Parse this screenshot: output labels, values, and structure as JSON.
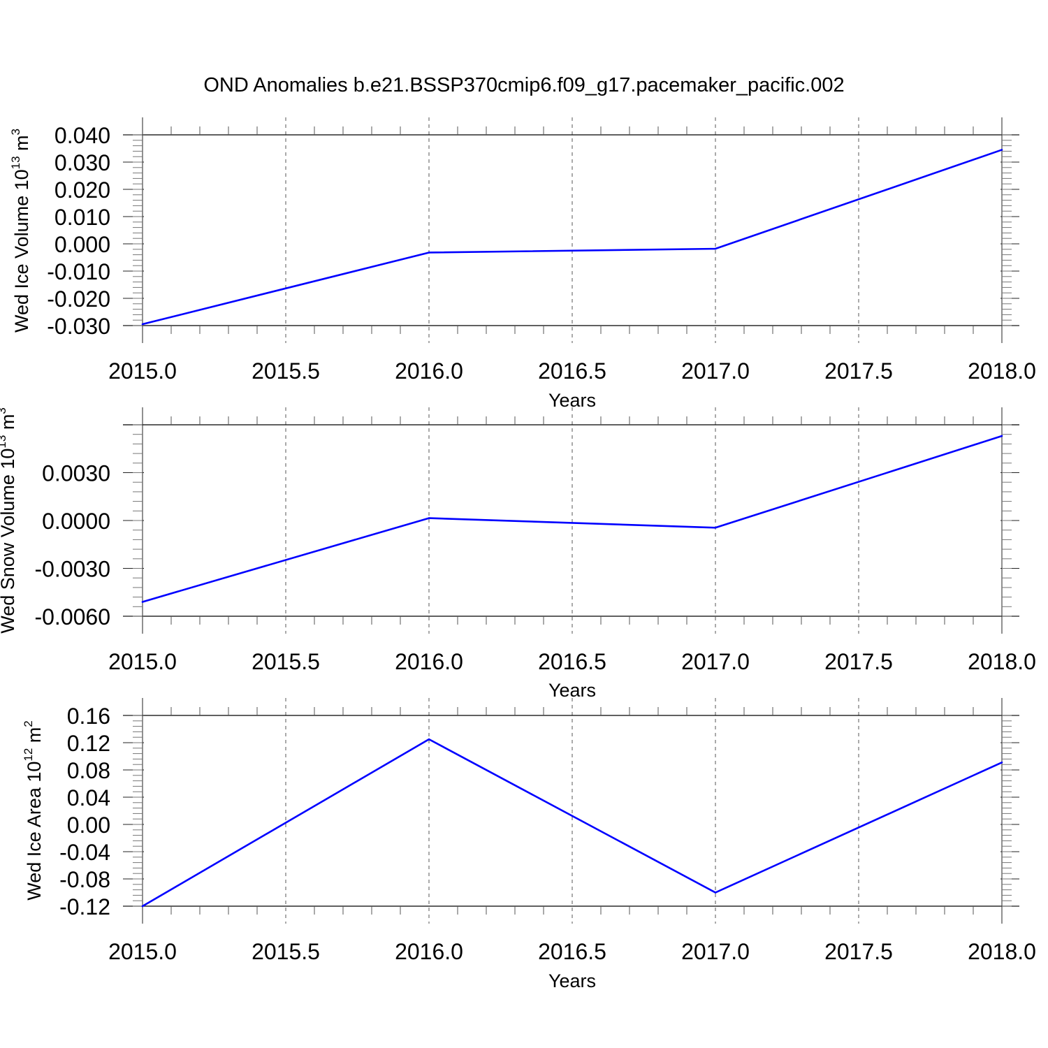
{
  "title": "OND Anomalies b.e21.BSSP370cmip6.f09_g17.pacemaker_pacific.002",
  "line_color": "#0000ff",
  "chart_data": [
    {
      "type": "line",
      "ylabel": {
        "base": "Wed Ice Volume 10",
        "exp1": "13",
        "mid": " m",
        "exp2": "3"
      },
      "xlabel": "Years",
      "xlim": [
        2015.0,
        2018.0
      ],
      "ylim": [
        -0.03,
        0.04
      ],
      "xticks": [
        2015.0,
        2015.5,
        2016.0,
        2016.5,
        2017.0,
        2017.5,
        2018.0
      ],
      "xtick_labels": [
        "2015.0",
        "2015.5",
        "2016.0",
        "2016.5",
        "2017.0",
        "2017.5",
        "2018.0"
      ],
      "yticks": [
        -0.03,
        -0.02,
        -0.01,
        0.0,
        0.01,
        0.02,
        0.03,
        0.04
      ],
      "ytick_labels": [
        "-0.030",
        "-0.020",
        "-0.010",
        "0.000",
        "0.010",
        "0.020",
        "0.030",
        "0.040"
      ],
      "grid": "vertical dashed",
      "x": [
        2015,
        2016,
        2017,
        2018
      ],
      "values": [
        -0.0295,
        -0.0032,
        -0.0018,
        0.0345
      ]
    },
    {
      "type": "line",
      "ylabel": {
        "base": "Wed Snow Volume 10",
        "exp1": "13",
        "mid": " m",
        "exp2": "3"
      },
      "xlabel": "Years",
      "xlim": [
        2015.0,
        2018.0
      ],
      "ylim": [
        -0.006,
        0.006
      ],
      "xticks": [
        2015.0,
        2015.5,
        2016.0,
        2016.5,
        2017.0,
        2017.5,
        2018.0
      ],
      "xtick_labels": [
        "2015.0",
        "2015.5",
        "2016.0",
        "2016.5",
        "2017.0",
        "2017.5",
        "2018.0"
      ],
      "yticks": [
        -0.006,
        -0.003,
        0.0,
        0.003
      ],
      "ytick_labels": [
        "-0.0060",
        "-0.0030",
        "0.0000",
        "0.0030"
      ],
      "grid": "vertical dashed",
      "x": [
        2015,
        2016,
        2017,
        2018
      ],
      "values": [
        -0.0051,
        0.00015,
        -0.00045,
        0.0053
      ]
    },
    {
      "type": "line",
      "ylabel": {
        "base": "Wed Ice Area 10",
        "exp1": "12",
        "mid": " m",
        "exp2": "2"
      },
      "xlabel": "Years",
      "xlim": [
        2015.0,
        2018.0
      ],
      "ylim": [
        -0.12,
        0.16
      ],
      "xticks": [
        2015.0,
        2015.5,
        2016.0,
        2016.5,
        2017.0,
        2017.5,
        2018.0
      ],
      "xtick_labels": [
        "2015.0",
        "2015.5",
        "2016.0",
        "2016.5",
        "2017.0",
        "2017.5",
        "2018.0"
      ],
      "yticks": [
        -0.12,
        -0.08,
        -0.04,
        0.0,
        0.04,
        0.08,
        0.12,
        0.16
      ],
      "ytick_labels": [
        "-0.12",
        "-0.08",
        "-0.04",
        "0.00",
        "0.04",
        "0.08",
        "0.12",
        "0.16"
      ],
      "grid": "vertical dashed",
      "x": [
        2015,
        2016,
        2017,
        2018
      ],
      "values": [
        -0.12,
        0.125,
        -0.1,
        0.091
      ]
    }
  ]
}
